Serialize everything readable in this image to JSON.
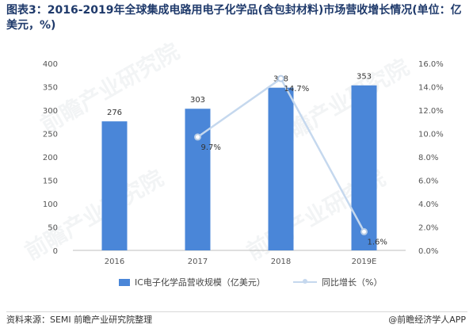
{
  "title": "图表3：2016-2019年全球集成电路用电子化学品(含包封材料)市场营收增长情况(单位：亿美元，%)",
  "footer": {
    "source": "资料来源：SEMI 前瞻产业研究院整理",
    "brand": "@前瞻经济学人APP"
  },
  "colors": {
    "bar": "#4a86d8",
    "line": "#c5d8ee"
  },
  "chart_data": {
    "type": "bar",
    "categories": [
      "2016",
      "2017",
      "2018",
      "2019E"
    ],
    "series": [
      {
        "name": "IC电子化学品营收规模（亿美元）",
        "type": "bar",
        "axis": "left",
        "values": [
          276,
          303,
          348,
          353
        ],
        "labels": [
          "276",
          "303",
          "348",
          "353"
        ]
      },
      {
        "name": "同比增长（%）",
        "type": "line",
        "axis": "right",
        "values": [
          null,
          9.7,
          14.7,
          1.6
        ],
        "labels": [
          "",
          "9.7%",
          "14.7%",
          "1.6%"
        ]
      }
    ],
    "y_left": {
      "min": 0,
      "max": 400,
      "ticks": [
        "0",
        "50",
        "100",
        "150",
        "200",
        "250",
        "300",
        "350",
        "400"
      ]
    },
    "y_right": {
      "min": 0,
      "max": 16,
      "ticks": [
        "0.0%",
        "2.0%",
        "4.0%",
        "6.0%",
        "8.0%",
        "10.0%",
        "12.0%",
        "14.0%",
        "16.0%"
      ]
    },
    "grid": false,
    "legend": "bottom"
  }
}
